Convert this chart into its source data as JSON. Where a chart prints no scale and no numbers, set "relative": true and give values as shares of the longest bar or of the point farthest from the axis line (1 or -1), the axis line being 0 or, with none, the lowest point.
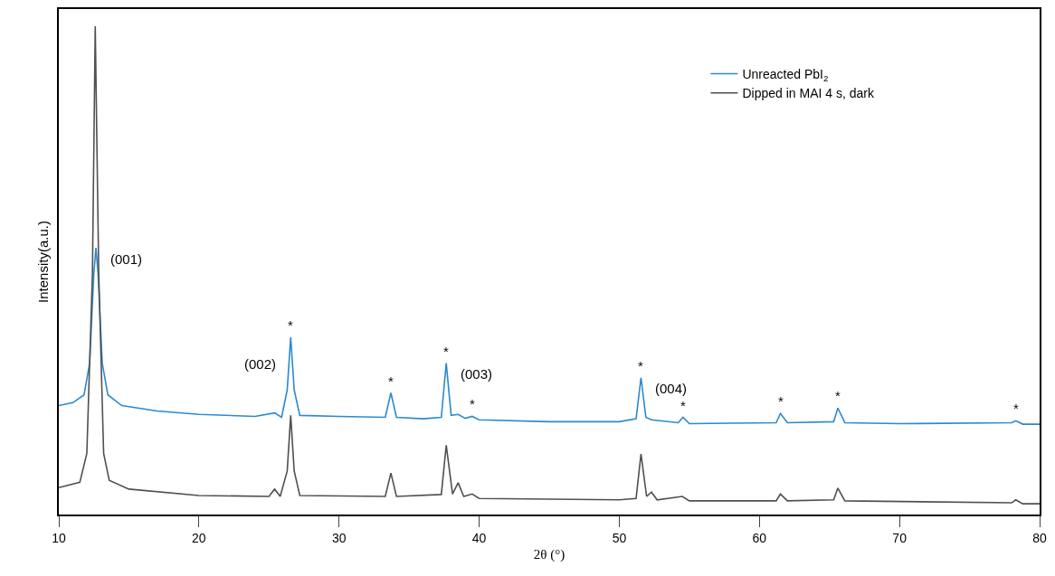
{
  "chart_data": {
    "type": "line",
    "relative": true,
    "xlabel": "2θ (°)",
    "ylabel": "Intensity(a.u.)",
    "xlim": [
      10,
      80
    ],
    "xticks": [
      10,
      20,
      30,
      40,
      50,
      60,
      70,
      80
    ],
    "tick_labels": "x",
    "legend": "top right",
    "series": [
      {
        "name": "Unreacted PbI$_{2}$",
        "color": "#2a8ad0",
        "x": [
          10,
          11,
          11.8,
          12.2,
          12.5,
          12.65,
          12.8,
          13.1,
          13.5,
          14.5,
          17,
          20,
          24,
          25.4,
          25.9,
          26.3,
          26.55,
          26.8,
          27.2,
          30,
          33.3,
          33.7,
          34.1,
          36,
          37.3,
          37.65,
          38,
          38.5,
          39,
          39.5,
          40,
          45,
          50,
          51.2,
          51.55,
          51.9,
          52.3,
          54.2,
          54.55,
          55,
          61.2,
          61.5,
          62,
          65.3,
          65.6,
          66.1,
          70,
          78,
          78.3,
          78.8,
          80
        ],
        "values": [
          0.223,
          0.229,
          0.245,
          0.31,
          0.494,
          0.546,
          0.494,
          0.31,
          0.245,
          0.223,
          0.212,
          0.205,
          0.201,
          0.208,
          0.199,
          0.255,
          0.363,
          0.255,
          0.203,
          0.201,
          0.199,
          0.249,
          0.199,
          0.196,
          0.199,
          0.31,
          0.203,
          0.205,
          0.197,
          0.201,
          0.194,
          0.19,
          0.19,
          0.196,
          0.28,
          0.199,
          0.194,
          0.188,
          0.199,
          0.186,
          0.188,
          0.207,
          0.188,
          0.19,
          0.218,
          0.188,
          0.186,
          0.188,
          0.192,
          0.185,
          0.185
        ]
      },
      {
        "name": "Dipped in MAI 4 s, dark",
        "color": "#505050",
        "x": [
          10,
          11.5,
          12,
          12.4,
          12.6,
          12.85,
          13.2,
          13.6,
          15,
          20,
          25,
          25.4,
          25.8,
          26.3,
          26.55,
          26.8,
          27.2,
          33.3,
          33.7,
          34.1,
          37.3,
          37.65,
          38.1,
          38.5,
          38.9,
          39.5,
          40,
          50,
          51.2,
          51.55,
          51.95,
          52.3,
          52.7,
          54.5,
          55,
          61.2,
          61.5,
          62,
          65.3,
          65.6,
          66.1,
          78,
          78.3,
          78.8,
          80
        ],
        "values": [
          0.055,
          0.066,
          0.125,
          0.494,
          1,
          0.494,
          0.125,
          0.07,
          0.052,
          0.039,
          0.037,
          0.052,
          0.037,
          0.089,
          0.203,
          0.089,
          0.039,
          0.037,
          0.085,
          0.037,
          0.041,
          0.142,
          0.042,
          0.065,
          0.037,
          0.042,
          0.033,
          0.03,
          0.033,
          0.124,
          0.037,
          0.046,
          0.03,
          0.037,
          0.028,
          0.028,
          0.042,
          0.028,
          0.03,
          0.054,
          0.028,
          0.024,
          0.03,
          0.022,
          0.022
        ]
      }
    ],
    "annotations": [
      {
        "text": "(001)",
        "x": 12.65,
        "y": 0.546
      },
      {
        "text": "(002)",
        "x": 26.55,
        "y": 0.363
      },
      {
        "text": "(003)",
        "x": 37.65,
        "y": 0.31
      },
      {
        "text": "(004)",
        "x": 51.55,
        "y": 0.28
      },
      {
        "text": "*",
        "x": 26.55,
        "y": 0.363
      },
      {
        "text": "*",
        "x": 33.7,
        "y": 0.249
      },
      {
        "text": "*",
        "x": 37.65,
        "y": 0.31
      },
      {
        "text": "*",
        "x": 39.5,
        "y": 0.201
      },
      {
        "text": "*",
        "x": 51.55,
        "y": 0.28
      },
      {
        "text": "*",
        "x": 54.55,
        "y": 0.199
      },
      {
        "text": "*",
        "x": 61.5,
        "y": 0.207
      },
      {
        "text": "*",
        "x": 65.6,
        "y": 0.218
      },
      {
        "text": "*",
        "x": 78.3,
        "y": 0.192
      }
    ]
  }
}
